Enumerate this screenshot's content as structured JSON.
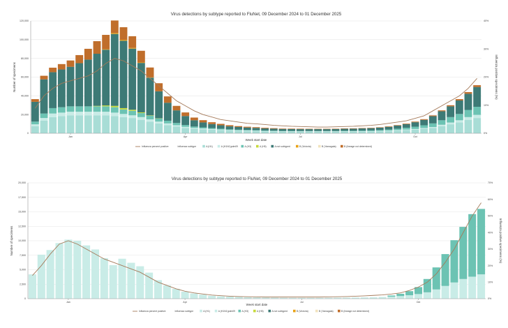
{
  "chart_data": [
    {
      "type": "bar",
      "stacked": true,
      "title": "Virus detections by subtype reported to FluNet, 09 December 2024 to 01 December 2025",
      "xlabel": "Week start date",
      "ylabel": "Number of specimens",
      "y2label": "Influenza positive specimens (%)",
      "ylim": [
        0,
        125000
      ],
      "y2lim": [
        0,
        45
      ],
      "yticks": [
        "0",
        "20,000",
        "40,000",
        "60,000",
        "80,000",
        "100,000",
        "120,000"
      ],
      "y2ticks": [
        "0%",
        "10%",
        "20%",
        "30%",
        "40%"
      ],
      "xticks": [
        {
          "index": 4,
          "label": "Jan"
        },
        {
          "index": 17,
          "label": "Apr"
        },
        {
          "index": 30,
          "label": "Jul"
        },
        {
          "index": 43,
          "label": "Oct"
        }
      ],
      "legend_title": "Influenza subtype",
      "line_label": "Influenza percent positive",
      "line_color": "#a57a5a",
      "series": [
        {
          "name": "A (H1)",
          "color": "#a8ddd6",
          "values": [
            8000,
            14000,
            18000,
            19000,
            20000,
            20000,
            20000,
            20000,
            20000,
            19000,
            18000,
            17000,
            15000,
            13000,
            11000,
            9000,
            7500,
            6000,
            5000,
            4500,
            4000,
            3500,
            3000,
            2800,
            2600,
            2400,
            2200,
            2000,
            1800,
            1800,
            1700,
            1700,
            1700,
            1700,
            1700,
            1800,
            1800,
            1900,
            2000,
            2200,
            2500,
            3000,
            3500,
            4000,
            5000,
            6000,
            8000,
            10000,
            12000,
            15000,
            17000
          ]
        },
        {
          "name": "A (H1N1)pdm09",
          "color": "#c9ece7",
          "values": [
            2000,
            3000,
            4000,
            4000,
            4000,
            4000,
            4000,
            4000,
            4000,
            4000,
            3500,
            3000,
            3000,
            2500,
            2000,
            2000,
            1500,
            1200,
            1000,
            900,
            800,
            700,
            600,
            500,
            500,
            500,
            400,
            400,
            400,
            400,
            400,
            400,
            400,
            400,
            400,
            400,
            400,
            400,
            400,
            500,
            500,
            600,
            700,
            800,
            900,
            1000,
            1500,
            2000,
            2500,
            3000,
            3500
          ]
        },
        {
          "name": "A (H3)",
          "color": "#6cc3b3",
          "values": [
            3000,
            5000,
            6000,
            6000,
            6000,
            6000,
            6000,
            6000,
            6000,
            6000,
            5000,
            5000,
            4500,
            4000,
            3500,
            3000,
            2500,
            2000,
            1500,
            1200,
            1000,
            900,
            800,
            700,
            600,
            600,
            500,
            500,
            500,
            500,
            500,
            500,
            500,
            500,
            500,
            600,
            600,
            700,
            800,
            900,
            1200,
            1500,
            2000,
            2500,
            3000,
            4000,
            5000,
            6000,
            7000,
            8000,
            9000
          ]
        },
        {
          "name": "A (H5)",
          "color": "#c7d93b",
          "values": [
            0,
            0,
            0,
            0,
            0,
            0,
            0,
            500,
            1000,
            1500,
            1500,
            1200,
            800,
            400,
            200,
            0,
            0,
            0,
            0,
            0,
            0,
            0,
            0,
            0,
            0,
            0,
            0,
            0,
            0,
            0,
            0,
            0,
            0,
            0,
            0,
            0,
            0,
            0,
            0,
            0,
            0,
            0,
            0,
            0,
            0,
            0,
            0,
            0,
            0,
            0,
            0
          ]
        },
        {
          "name": "A not subtyped",
          "color": "#3d7a76",
          "values": [
            22000,
            38000,
            40000,
            42000,
            44000,
            48000,
            52000,
            58000,
            62000,
            80000,
            75000,
            68000,
            55000,
            42000,
            30000,
            20000,
            14000,
            10000,
            7000,
            5500,
            4500,
            3800,
            3300,
            3000,
            2700,
            2500,
            2300,
            2200,
            2100,
            2000,
            2000,
            2000,
            2000,
            2000,
            2100,
            2200,
            2300,
            2400,
            2500,
            2700,
            3000,
            3500,
            4000,
            5000,
            6000,
            8000,
            10000,
            12000,
            15000,
            18000,
            22000
          ]
        },
        {
          "name": "B (Victoria)",
          "color": "#e8a317",
          "values": [
            0,
            0,
            0,
            0,
            0,
            0,
            0,
            0,
            500,
            1000,
            1000,
            800,
            500,
            300,
            0,
            0,
            0,
            0,
            0,
            0,
            0,
            0,
            0,
            0,
            0,
            0,
            0,
            0,
            0,
            0,
            0,
            0,
            0,
            0,
            0,
            0,
            0,
            0,
            0,
            0,
            0,
            0,
            0,
            0,
            0,
            0,
            0,
            0,
            0,
            0,
            0
          ]
        },
        {
          "name": "B (Yamagata)",
          "color": "#f2e3bd",
          "values": [
            0,
            0,
            0,
            0,
            0,
            0,
            0,
            0,
            0,
            0,
            0,
            0,
            0,
            0,
            0,
            0,
            0,
            0,
            0,
            0,
            0,
            0,
            0,
            0,
            0,
            0,
            0,
            0,
            0,
            0,
            0,
            0,
            0,
            0,
            0,
            0,
            0,
            0,
            0,
            0,
            0,
            0,
            0,
            0,
            0,
            0,
            0,
            0,
            0,
            0,
            0
          ]
        },
        {
          "name": "B (lineage not determined)",
          "color": "#c06e2b",
          "values": [
            3000,
            4000,
            5000,
            6000,
            7000,
            9000,
            12000,
            14000,
            16000,
            14000,
            14000,
            13000,
            13000,
            11000,
            9000,
            7000,
            5000,
            4000,
            3000,
            2500,
            2000,
            1600,
            1300,
            1000,
            900,
            800,
            700,
            600,
            500,
            500,
            500,
            400,
            400,
            400,
            400,
            400,
            400,
            400,
            400,
            400,
            500,
            500,
            600,
            700,
            800,
            900,
            1000,
            1200,
            1500,
            1800,
            2000
          ]
        }
      ],
      "line_values": [
        10,
        15,
        18,
        20,
        21,
        22,
        23,
        25,
        28,
        30,
        29,
        27,
        25,
        22,
        19,
        16,
        13,
        11,
        9,
        7.5,
        6.5,
        5.5,
        5,
        4.5,
        4,
        3.8,
        3.5,
        3.2,
        3,
        2.8,
        2.7,
        2.6,
        2.5,
        2.5,
        2.6,
        2.7,
        2.8,
        3,
        3.2,
        3.5,
        4,
        4.5,
        5,
        6,
        7,
        9,
        11,
        13,
        15,
        18,
        22
      ]
    },
    {
      "type": "bar",
      "stacked": true,
      "title": "Virus detections by subtype reported to FluNet, 09 December 2024 to 01 December 2025",
      "xlabel": "Week start date",
      "ylabel": "Number of specimens",
      "y2label": "Influenza positive specimens (%)",
      "ylim": [
        0,
        20000
      ],
      "y2lim": [
        0,
        70
      ],
      "yticks": [
        "0",
        "2,500",
        "5,000",
        "7,500",
        "10,000",
        "12,500",
        "15,000",
        "17,500",
        "20,000"
      ],
      "y2ticks": [
        "0%",
        "10%",
        "20%",
        "30%",
        "40%",
        "50%",
        "60%",
        "70%"
      ],
      "xticks": [
        {
          "index": 4,
          "label": "Jan"
        },
        {
          "index": 17,
          "label": "Apr"
        },
        {
          "index": 30,
          "label": "Jul"
        },
        {
          "index": 43,
          "label": "Oct"
        }
      ],
      "legend_title": "Influenza subtype",
      "line_label": "Influenza percent positive",
      "line_color": "#a57a5a",
      "series": [
        {
          "name": "A (H1)",
          "color": "#c9ece7",
          "values": [
            0,
            0,
            0,
            0,
            0,
            0,
            0,
            0,
            0,
            0,
            0,
            0,
            0,
            0,
            0,
            0,
            0,
            0,
            0,
            0,
            0,
            0,
            0,
            0,
            0,
            0,
            0,
            0,
            0,
            0,
            0,
            0,
            0,
            0,
            0,
            0,
            0,
            0,
            0,
            0,
            0,
            0,
            0,
            0,
            0,
            0,
            0,
            0,
            0,
            0,
            0
          ]
        },
        {
          "name": "A (H1N1)pdm09",
          "color": "#c9ece7",
          "values": [
            4200,
            7600,
            8400,
            9600,
            10200,
            10000,
            9200,
            8500,
            7000,
            5800,
            6900,
            6200,
            5600,
            4500,
            3200,
            2300,
            1700,
            1200,
            900,
            700,
            500,
            400,
            350,
            300,
            250,
            220,
            200,
            180,
            160,
            150,
            150,
            150,
            150,
            160,
            170,
            180,
            200,
            220,
            250,
            300,
            350,
            450,
            600,
            800,
            1100,
            1600,
            2200,
            2800,
            3400,
            3800,
            4200
          ]
        },
        {
          "name": "A (H3)",
          "color": "#6cc3b3",
          "values": [
            0,
            0,
            0,
            0,
            0,
            0,
            0,
            0,
            0,
            0,
            0,
            0,
            0,
            0,
            0,
            0,
            0,
            0,
            0,
            0,
            0,
            0,
            0,
            0,
            0,
            0,
            0,
            0,
            0,
            0,
            0,
            0,
            0,
            0,
            0,
            0,
            0,
            0,
            0,
            0,
            200,
            400,
            700,
            1200,
            2300,
            3800,
            5500,
            7300,
            9000,
            10800,
            11300
          ]
        },
        {
          "name": "A (H5)",
          "color": "#c7d93b",
          "values": [
            0,
            0,
            0,
            0,
            0,
            0,
            0,
            0,
            0,
            0,
            0,
            0,
            0,
            0,
            0,
            0,
            0,
            0,
            0,
            0,
            0,
            0,
            0,
            0,
            0,
            0,
            0,
            0,
            0,
            0,
            0,
            0,
            0,
            0,
            0,
            0,
            0,
            0,
            0,
            0,
            0,
            0,
            0,
            0,
            0,
            0,
            0,
            0,
            0,
            0,
            0
          ]
        },
        {
          "name": "A not subtyped",
          "color": "#3d7a76",
          "values": [
            0,
            0,
            0,
            0,
            0,
            0,
            0,
            0,
            0,
            0,
            0,
            0,
            0,
            0,
            0,
            0,
            0,
            0,
            0,
            0,
            0,
            0,
            0,
            0,
            0,
            0,
            0,
            0,
            0,
            0,
            0,
            0,
            0,
            0,
            0,
            0,
            0,
            0,
            0,
            0,
            0,
            0,
            0,
            0,
            0,
            0,
            0,
            0,
            0,
            0,
            0
          ]
        },
        {
          "name": "B (Victoria)",
          "color": "#e8a317",
          "values": [
            0,
            0,
            0,
            0,
            0,
            0,
            0,
            0,
            0,
            0,
            0,
            0,
            0,
            0,
            0,
            0,
            0,
            0,
            0,
            0,
            0,
            0,
            0,
            0,
            0,
            0,
            0,
            0,
            0,
            0,
            0,
            0,
            0,
            0,
            0,
            0,
            0,
            0,
            0,
            0,
            0,
            0,
            0,
            0,
            0,
            0,
            0,
            0,
            0,
            0,
            0
          ]
        },
        {
          "name": "B (Yamagata)",
          "color": "#f2e3bd",
          "values": [
            0,
            0,
            0,
            0,
            0,
            0,
            0,
            0,
            0,
            0,
            0,
            0,
            0,
            0,
            0,
            0,
            0,
            0,
            0,
            0,
            0,
            0,
            0,
            0,
            0,
            0,
            0,
            0,
            0,
            0,
            0,
            0,
            0,
            0,
            0,
            0,
            0,
            0,
            0,
            0,
            0,
            0,
            0,
            0,
            0,
            0,
            0,
            0,
            0,
            0,
            0
          ]
        },
        {
          "name": "B (lineage not determined)",
          "color": "#c06e2b",
          "values": [
            0,
            0,
            0,
            0,
            0,
            0,
            0,
            0,
            0,
            0,
            0,
            0,
            0,
            0,
            0,
            0,
            0,
            0,
            0,
            0,
            0,
            0,
            0,
            0,
            0,
            0,
            0,
            0,
            0,
            0,
            0,
            0,
            0,
            0,
            0,
            0,
            0,
            0,
            0,
            0,
            0,
            0,
            0,
            0,
            0,
            0,
            0,
            0,
            0,
            0,
            0
          ]
        }
      ],
      "line_values": [
        14,
        20,
        27,
        33,
        35,
        33,
        30,
        27,
        24,
        22,
        20,
        18,
        16,
        13,
        10,
        8,
        6,
        4.5,
        3.5,
        2.8,
        2.2,
        1.8,
        1.5,
        1.3,
        1.2,
        1.1,
        1,
        1,
        1,
        1,
        1,
        1,
        1,
        1.1,
        1.2,
        1.3,
        1.5,
        1.7,
        2,
        2.3,
        2.8,
        3.5,
        5,
        7,
        10,
        15,
        22,
        30,
        40,
        50,
        58
      ]
    }
  ]
}
